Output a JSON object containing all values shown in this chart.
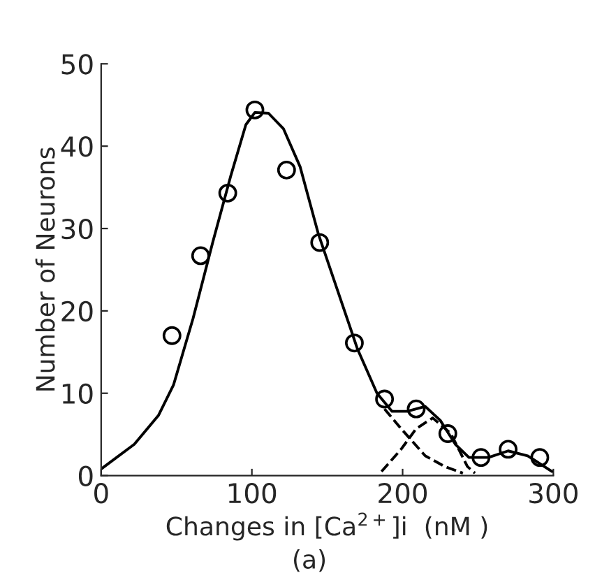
{
  "chart_data": {
    "type": "scatter",
    "xlabel": "Changes in [Ca$^{2+}$]i  (nM )",
    "ylabel": "Number of Neurons",
    "annotations": [
      "(a)"
    ],
    "xlim": [
      0,
      300
    ],
    "ylim": [
      0,
      50
    ],
    "xticks": [
      0,
      100,
      200,
      300
    ],
    "yticks": [
      0,
      10,
      20,
      30,
      40,
      50
    ],
    "grid": false,
    "legend": false,
    "series": [
      {
        "color": "#000000",
        "marker": "circle",
        "x": [
          47,
          66,
          84,
          102,
          123,
          145,
          168,
          188,
          209,
          230,
          252,
          270,
          291
        ],
        "values": [
          17.0,
          26.7,
          34.3,
          44.4,
          37.1,
          28.3,
          16.1,
          9.3,
          8.1,
          5.1,
          2.2,
          3.2,
          2.2
        ]
      },
      {
        "type": "line",
        "color": "#000000",
        "line_style": "solid",
        "x": [
          0,
          22,
          38,
          48,
          61,
          74,
          86,
          96,
          102,
          111,
          121,
          132,
          144,
          157,
          170,
          183,
          193,
          203,
          215,
          225,
          235,
          244,
          257,
          270,
          283,
          299
        ],
        "values": [
          0.8,
          3.8,
          7.3,
          11,
          19.1,
          28.3,
          36.4,
          42.6,
          44.1,
          44,
          42.1,
          37.5,
          29.4,
          22.4,
          15.4,
          10,
          7.8,
          7.8,
          8.4,
          6.7,
          3.8,
          2.2,
          2.2,
          3.0,
          2.4,
          0.5
        ]
      },
      {
        "type": "line",
        "color": "#000000",
        "line_style": "dashed",
        "x": [
          188,
          199,
          215,
          228,
          240
        ],
        "values": [
          8.1,
          5.7,
          2.4,
          1.1,
          0.3
        ]
      },
      {
        "type": "line",
        "color": "#000000",
        "line_style": "dashed",
        "x": [
          186,
          199,
          209,
          220,
          232,
          243,
          248
        ],
        "values": [
          0.5,
          3.2,
          5.7,
          7.0,
          5.1,
          1.1,
          0.3
        ]
      }
    ]
  }
}
